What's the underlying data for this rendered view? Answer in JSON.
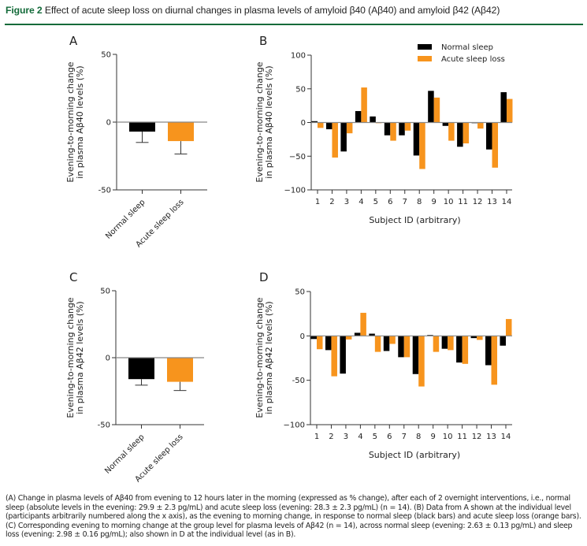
{
  "figure": {
    "number": "Figure 2",
    "title": "Effect of acute sleep loss on diurnal changes in plasma levels of amyloid β40 (Aβ40) and amyloid β42 (Aβ42)",
    "colors": {
      "accent": "#146b3a",
      "normal": "#000000",
      "acute": "#f7941d",
      "zero_line": "#888888",
      "axis": "#333333"
    }
  },
  "caption": "(A) Change in plasma levels of Aβ40 from evening to 12 hours later in the morning (expressed as % change), after each of 2 overnight interventions, i.e., normal sleep (absolute levels in the evening: 29.9 ± 2.3 pg/mL) and acute sleep loss (evening: 28.3 ± 2.3 pg/mL) (n = 14). (B) Data from A shown at the individual level (participants arbitrarily numbered along the x axis), as the evening to morning change, in response to normal sleep (black bars) and acute sleep loss (orange bars). (C) Corresponding evening to morning change at the group level for plasma levels of Aβ42 (n = 14), across normal sleep (evening: 2.63 ± 0.13 pg/mL) and sleep loss (evening: 2.98 ± 0.16 pg/mL); also shown in D at the individual level (as in B).",
  "chart_data": [
    {
      "panel": "A",
      "type": "bar",
      "title": "",
      "xlabel": "",
      "ylabel": "Evening-to-morning change in plasma Aβ40 levels (%)",
      "ylabel_lines": [
        "Evening-to-morning change",
        "in plasma Aβ40 levels (%)"
      ],
      "ylim": [
        -50,
        50
      ],
      "yticks": [
        50,
        0,
        -50
      ],
      "ytick_labels": [
        "50",
        "0",
        "-50"
      ],
      "categories": [
        "Normal sleep",
        "Acute sleep loss"
      ],
      "values": [
        -7,
        -14
      ],
      "errors": [
        8,
        9.5
      ],
      "colors": [
        "#000000",
        "#f7941d"
      ],
      "grid": false
    },
    {
      "panel": "B",
      "type": "bar",
      "title": "",
      "xlabel": "Subject ID (arbitrary)",
      "ylabel": "Evening-to-morning change in plasma Aβ40 levels (%)",
      "ylabel_lines": [
        "Evening-to-morning change",
        "in plasma Aβ40 levels (%)"
      ],
      "ylim": [
        -100,
        100
      ],
      "yticks": [
        100,
        50,
        0,
        -50,
        -100
      ],
      "ytick_labels": [
        "100",
        "50",
        "0",
        "−50",
        "−100"
      ],
      "categories": [
        "1",
        "2",
        "3",
        "4",
        "5",
        "6",
        "7",
        "8",
        "9",
        "10",
        "11",
        "12",
        "13",
        "14"
      ],
      "series": [
        {
          "name": "Normal sleep",
          "color": "#000000",
          "values": [
            2,
            -10,
            -43,
            17,
            9,
            -19,
            -19,
            -49,
            47,
            -5,
            -36,
            -1,
            -40,
            45
          ]
        },
        {
          "name": "Acute sleep loss",
          "color": "#f7941d",
          "values": [
            -8,
            -52,
            -16,
            52,
            -1,
            -27,
            -12,
            -69,
            37,
            -27,
            -31,
            -9,
            -67,
            35
          ]
        }
      ],
      "legend": {
        "position": "top-right",
        "entries": [
          "Normal sleep",
          "Acute sleep loss"
        ]
      },
      "grid": false
    },
    {
      "panel": "C",
      "type": "bar",
      "title": "",
      "xlabel": "",
      "ylabel": "Evening-to-morning change in plasma Aβ42 levels (%)",
      "ylabel_lines": [
        "Evening-to-morning change",
        "in plasma Aβ42 levels (%)"
      ],
      "ylim": [
        -50,
        50
      ],
      "yticks": [
        50,
        0,
        -50
      ],
      "ytick_labels": [
        "50",
        "0",
        "-50"
      ],
      "categories": [
        "Normal sleep",
        "Acute sleep loss"
      ],
      "values": [
        -16,
        -18
      ],
      "errors": [
        4.5,
        6.5
      ],
      "colors": [
        "#000000",
        "#f7941d"
      ],
      "grid": false
    },
    {
      "panel": "D",
      "type": "bar",
      "title": "",
      "xlabel": "Subject ID (arbitrary)",
      "ylabel": "Evening-to-morning change in plasma Aβ42 levels (%)",
      "ylabel_lines": [
        "Evening-to-morning change",
        "in plasma Aβ42 levels (%)"
      ],
      "ylim": [
        -100,
        50
      ],
      "yticks": [
        50,
        0,
        -50,
        -100
      ],
      "ytick_labels": [
        "50",
        "0",
        "-50",
        "−100"
      ],
      "categories": [
        "1",
        "2",
        "3",
        "4",
        "5",
        "6",
        "7",
        "8",
        "9",
        "10",
        "11",
        "12",
        "13",
        "14"
      ],
      "series": [
        {
          "name": "Normal sleep",
          "color": "#000000",
          "values": [
            -3.5,
            -16,
            -42.5,
            3.5,
            2.5,
            -17,
            -24,
            -43,
            1,
            -14.5,
            -30,
            -2.5,
            -33,
            -11
          ]
        },
        {
          "name": "Acute sleep loss",
          "color": "#f7941d",
          "values": [
            -15,
            -45.5,
            -4,
            26,
            -18,
            -9,
            -24,
            -57,
            -18,
            -16,
            -31.5,
            -4.5,
            -55,
            19
          ]
        }
      ],
      "grid": false
    }
  ]
}
